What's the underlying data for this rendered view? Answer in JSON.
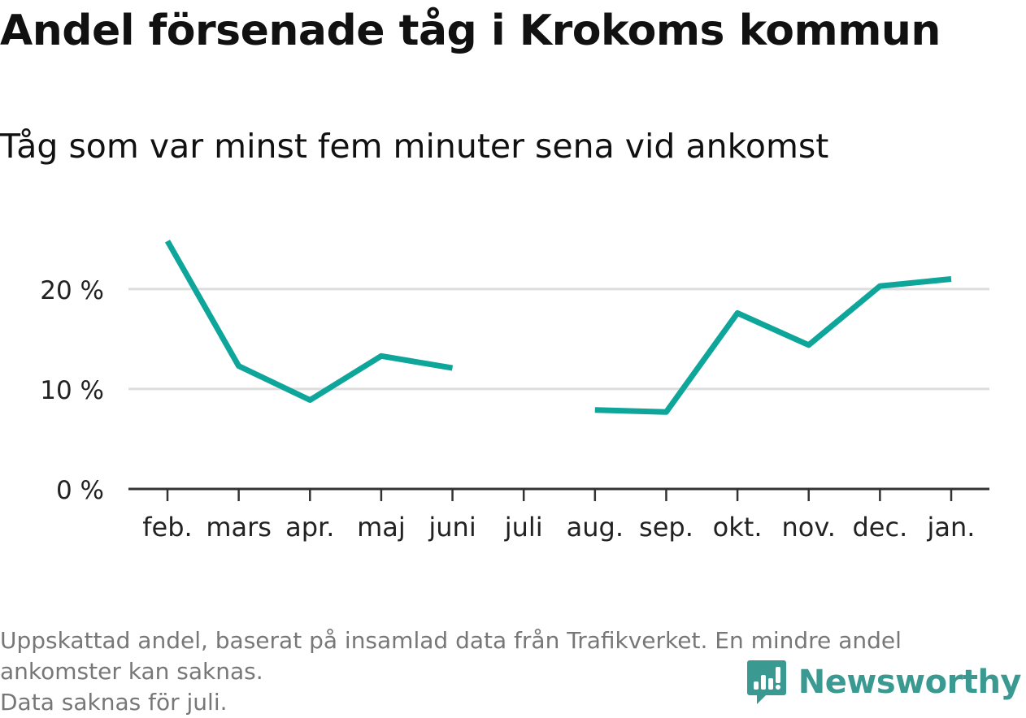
{
  "title": "Andel försenade tåg i Krokoms kommun",
  "subtitle": "Tåg som var minst fem minuter sena vid ankomst",
  "note_lines": [
    "Uppskattad andel, baserat på insamlad data från Trafikverket. En mindre andel",
    "ankomster kan saknas.",
    "Data saknas för juli."
  ],
  "brand": {
    "name": "Newsworthy",
    "icon": "newsworthy-logo-icon",
    "color": "#3a9a92"
  },
  "colors": {
    "line": "#0ea59a",
    "grid": "#dddddd",
    "axis": "#333333"
  },
  "chart_data": {
    "type": "line",
    "categories": [
      "feb.",
      "mars",
      "apr.",
      "maj",
      "juni",
      "juli",
      "aug.",
      "sep.",
      "okt.",
      "nov.",
      "dec.",
      "jan."
    ],
    "series": [
      {
        "values": [
          24.8,
          12.3,
          8.9,
          13.3,
          12.1,
          null,
          7.9,
          7.7,
          17.6,
          14.4,
          20.3,
          21.0
        ]
      }
    ],
    "yticks": [
      0,
      10,
      20
    ],
    "ytick_labels": [
      "0 %",
      "10 %",
      "20 %"
    ],
    "ylim": [
      0,
      26
    ],
    "xlabel": "",
    "ylabel": "",
    "grid": true,
    "legend": "none"
  }
}
